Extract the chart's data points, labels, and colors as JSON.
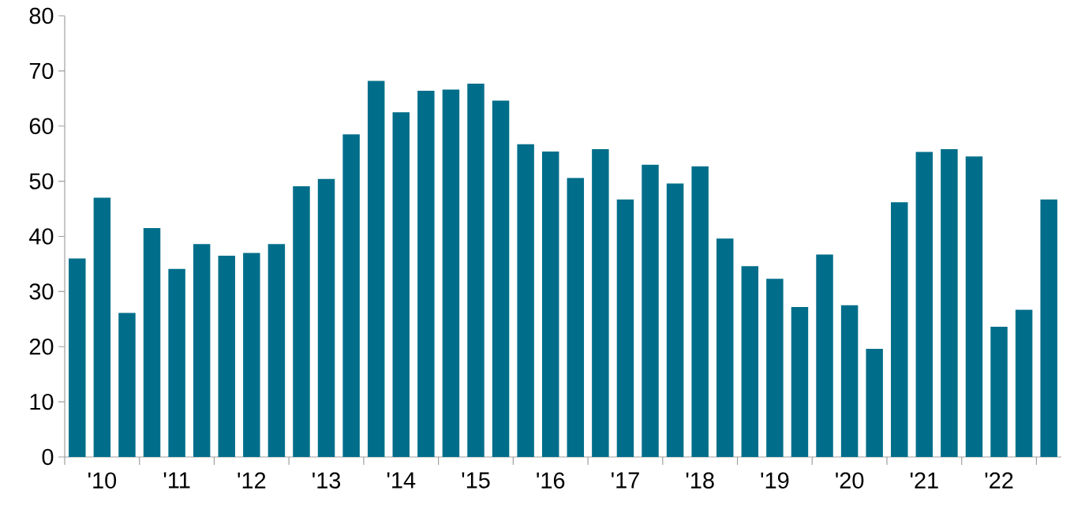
{
  "chart_data": {
    "type": "bar",
    "categories": [
      null,
      "'10",
      null,
      null,
      "'11",
      null,
      null,
      "'12",
      null,
      null,
      "'13",
      null,
      null,
      "'14",
      null,
      null,
      "'15",
      null,
      null,
      "'16",
      null,
      null,
      "'17",
      null,
      null,
      "'18",
      null,
      null,
      "'19",
      null,
      null,
      "'20",
      null,
      null,
      "'21",
      null,
      null,
      "'22",
      null,
      null
    ],
    "values": [
      36.0,
      47.0,
      26.1,
      41.5,
      34.1,
      38.6,
      36.5,
      37.0,
      38.6,
      49.1,
      50.4,
      58.5,
      68.2,
      62.5,
      66.4,
      66.6,
      67.7,
      64.6,
      56.7,
      55.4,
      50.6,
      55.8,
      46.7,
      53.0,
      49.6,
      52.7,
      39.6,
      34.6,
      32.3,
      27.2,
      36.7,
      27.5,
      19.6,
      46.2,
      55.3,
      55.8,
      54.5,
      23.6,
      26.7,
      46.7
    ],
    "color": "#006e8a",
    "ylim": [
      0,
      80
    ],
    "yticks": [
      0,
      10,
      20,
      30,
      40,
      50,
      60,
      70,
      80
    ],
    "grid": false
  }
}
